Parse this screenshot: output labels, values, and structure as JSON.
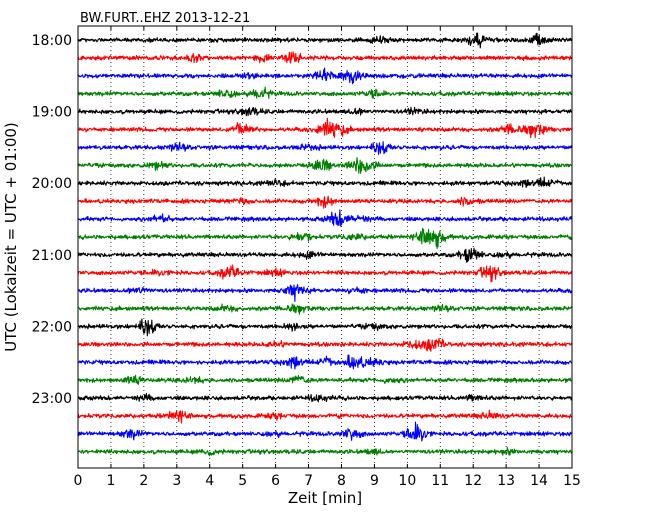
{
  "chart_data": {
    "type": "line",
    "title": "BW.FURT..EHZ 2013-12-21",
    "xlabel": "Zeit  [min]",
    "ylabel": "UTC (Lokalzeit = UTC + 01:00)",
    "xlim": [
      0,
      15
    ],
    "x_ticks": [
      "0",
      "1",
      "2",
      "3",
      "4",
      "5",
      "6",
      "7",
      "8",
      "9",
      "10",
      "11",
      "12",
      "13",
      "14",
      "15"
    ],
    "y_ticks": [
      "18:00",
      "19:00",
      "20:00",
      "21:00",
      "22:00",
      "23:00"
    ],
    "grid": "vertical-dotted",
    "trace_colors": [
      "#000000",
      "#ff0000",
      "#0000ff",
      "#008000"
    ],
    "traces": [
      {
        "start": "18:00",
        "bursts": [
          [
            12.1,
            1.9
          ],
          [
            14.0,
            1.6
          ],
          [
            9.2,
            0.8
          ]
        ]
      },
      {
        "start": "18:15",
        "bursts": [
          [
            6.5,
            1.4
          ],
          [
            5.5,
            0.8
          ],
          [
            3.5,
            0.7
          ]
        ]
      },
      {
        "start": "18:30",
        "bursts": [
          [
            7.5,
            1.4
          ],
          [
            8.3,
            1.9
          ],
          [
            5.3,
            0.7
          ]
        ]
      },
      {
        "start": "18:45",
        "bursts": [
          [
            5.5,
            1.6
          ],
          [
            4.5,
            1.0
          ],
          [
            9.0,
            0.7
          ]
        ]
      },
      {
        "start": "19:00",
        "bursts": [
          [
            5.2,
            1.0
          ],
          [
            8.5,
            0.8
          ],
          [
            10.2,
            0.6
          ]
        ]
      },
      {
        "start": "19:15",
        "bursts": [
          [
            5.0,
            1.8
          ],
          [
            7.5,
            1.9
          ],
          [
            7.9,
            1.5
          ],
          [
            13.1,
            0.9
          ],
          [
            13.9,
            2.0
          ]
        ]
      },
      {
        "start": "19:30",
        "bursts": [
          [
            9.2,
            1.6
          ],
          [
            3.0,
            0.9
          ],
          [
            7.0,
            0.6
          ]
        ]
      },
      {
        "start": "19:45",
        "bursts": [
          [
            2.4,
            0.9
          ],
          [
            7.4,
            1.6
          ],
          [
            8.5,
            1.6
          ],
          [
            8.8,
            1.2
          ]
        ]
      },
      {
        "start": "20:00",
        "bursts": [
          [
            14.2,
            1.2
          ],
          [
            13.5,
            0.9
          ],
          [
            6.0,
            0.6
          ]
        ]
      },
      {
        "start": "20:15",
        "bursts": [
          [
            7.5,
            1.3
          ],
          [
            11.8,
            0.9
          ],
          [
            5.0,
            0.6
          ]
        ]
      },
      {
        "start": "20:30",
        "bursts": [
          [
            7.9,
            2.0
          ],
          [
            2.5,
            1.0
          ],
          [
            8.6,
            0.8
          ]
        ]
      },
      {
        "start": "20:45",
        "bursts": [
          [
            6.8,
            1.2
          ],
          [
            10.6,
            2.2
          ],
          [
            10.9,
            1.8
          ],
          [
            8.4,
            0.7
          ]
        ]
      },
      {
        "start": "21:00",
        "bursts": [
          [
            11.9,
            2.2
          ],
          [
            7.0,
            0.7
          ],
          [
            13.0,
            0.6
          ]
        ]
      },
      {
        "start": "21:15",
        "bursts": [
          [
            4.6,
            1.6
          ],
          [
            12.5,
            1.8
          ],
          [
            6.0,
            0.7
          ],
          [
            2.5,
            0.6
          ]
        ]
      },
      {
        "start": "21:30",
        "bursts": [
          [
            6.6,
            2.0
          ],
          [
            1.8,
            1.0
          ],
          [
            8.5,
            0.6
          ]
        ]
      },
      {
        "start": "21:45",
        "bursts": [
          [
            6.7,
            0.9
          ],
          [
            4.5,
            0.6
          ],
          [
            11.0,
            0.6
          ]
        ]
      },
      {
        "start": "22:00",
        "bursts": [
          [
            2.1,
            2.2
          ],
          [
            6.5,
            0.6
          ],
          [
            9.0,
            0.6
          ]
        ]
      },
      {
        "start": "22:15",
        "bursts": [
          [
            10.8,
            1.8
          ],
          [
            10.2,
            1.0
          ],
          [
            6.0,
            0.6
          ]
        ]
      },
      {
        "start": "22:30",
        "bursts": [
          [
            6.5,
            1.8
          ],
          [
            8.4,
            2.0
          ],
          [
            7.5,
            1.0
          ],
          [
            9.0,
            0.8
          ]
        ]
      },
      {
        "start": "22:45",
        "bursts": [
          [
            1.7,
            1.0
          ],
          [
            6.7,
            1.0
          ],
          [
            3.5,
            0.6
          ],
          [
            9.5,
            0.6
          ]
        ]
      },
      {
        "start": "23:00",
        "bursts": [
          [
            7.3,
            0.7
          ],
          [
            2.0,
            0.6
          ],
          [
            12.0,
            0.6
          ]
        ]
      },
      {
        "start": "23:15",
        "bursts": [
          [
            3.0,
            1.4
          ],
          [
            12.5,
            0.8
          ],
          [
            6.0,
            0.6
          ]
        ]
      },
      {
        "start": "23:30",
        "bursts": [
          [
            1.6,
            1.1
          ],
          [
            8.3,
            1.6
          ],
          [
            10.3,
            2.6
          ],
          [
            6.0,
            0.6
          ]
        ]
      },
      {
        "start": "23:45",
        "bursts": [
          [
            4.0,
            0.6
          ],
          [
            9.0,
            0.6
          ],
          [
            13.0,
            0.5
          ]
        ]
      }
    ]
  }
}
